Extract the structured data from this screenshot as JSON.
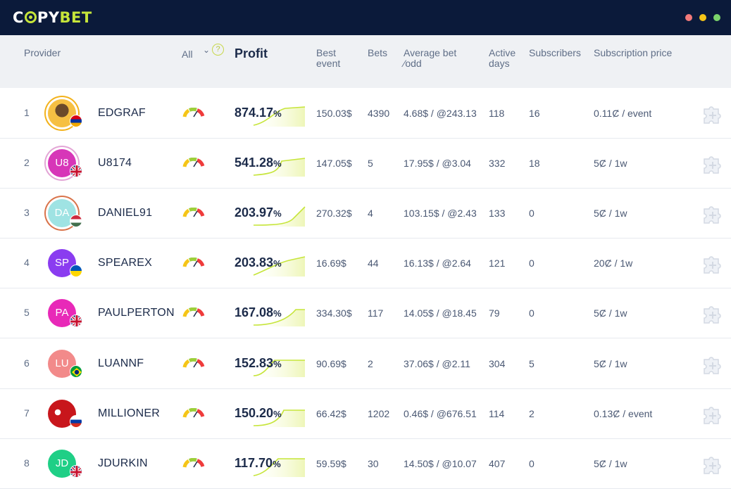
{
  "app": {
    "logo_prefix": "C",
    "logo_mid": "PY",
    "logo_accent": "BET",
    "window_dots": [
      "#f27a7a",
      "#f5c518",
      "#7bd36b"
    ]
  },
  "table": {
    "headers": {
      "provider": "Provider",
      "filter": "All",
      "help": "?",
      "profit": "Profit",
      "best_event": "Best event",
      "bets": "Bets",
      "average_bet": "Average bet  ⁄odd",
      "active_days": "Active days",
      "subscribers": "Subscribers",
      "subscription_price": "Subscription price"
    },
    "rows": [
      {
        "rank": "1",
        "initials": "",
        "avatar_color": "#f3b21b",
        "flag": "armenia",
        "name": "EDGRAF",
        "profit": "874.17",
        "pct": "%",
        "best_event": "150.03$",
        "bets": "4390",
        "avg_bet": "4.68$ / @243.13",
        "active_days": "118",
        "subscribers": "16",
        "price": "0.11Ȼ / event"
      },
      {
        "rank": "2",
        "initials": "U8",
        "avatar_color": "#d736b8",
        "flag": "uk",
        "name": "U8174",
        "profit": "541.28",
        "pct": "%",
        "best_event": "147.05$",
        "bets": "5",
        "avg_bet": "17.95$ / @3.04",
        "active_days": "332",
        "subscribers": "18",
        "price": "5Ȼ / 1w"
      },
      {
        "rank": "3",
        "initials": "DA",
        "avatar_color": "#9fe3e3",
        "flag": "hungary",
        "name": "DANIEL91",
        "profit": "203.97",
        "pct": "%",
        "best_event": "270.32$",
        "bets": "4",
        "avg_bet": "103.15$ / @2.43",
        "active_days": "133",
        "subscribers": "0",
        "price": "5Ȼ / 1w"
      },
      {
        "rank": "4",
        "initials": "SP",
        "avatar_color": "#8a3cf0",
        "flag": "ukraine",
        "name": "SPEAREX",
        "profit": "203.83",
        "pct": "%",
        "best_event": "16.69$",
        "bets": "44",
        "avg_bet": "16.13$ / @2.64",
        "active_days": "121",
        "subscribers": "0",
        "price": "20Ȼ / 1w"
      },
      {
        "rank": "5",
        "initials": "PA",
        "avatar_color": "#e829b8",
        "flag": "uk",
        "name": "PAULPERTON",
        "profit": "167.08",
        "pct": "%",
        "best_event": "334.30$",
        "bets": "117",
        "avg_bet": "14.05$ / @18.45",
        "active_days": "79",
        "subscribers": "0",
        "price": "5Ȼ / 1w"
      },
      {
        "rank": "6",
        "initials": "LU",
        "avatar_color": "#f28a8a",
        "flag": "brazil",
        "name": "LUANNF",
        "profit": "152.83",
        "pct": "%",
        "best_event": "90.69$",
        "bets": "2",
        "avg_bet": "37.06$ / @2.11",
        "active_days": "304",
        "subscribers": "5",
        "price": "5Ȼ / 1w"
      },
      {
        "rank": "7",
        "initials": "",
        "avatar_color": "#c8161c",
        "flag": "russia",
        "name": "MILLIONER",
        "profit": "150.20",
        "pct": "%",
        "best_event": "66.42$",
        "bets": "1202",
        "avg_bet": "0.46$ / @676.51",
        "active_days": "114",
        "subscribers": "2",
        "price": "0.13Ȼ / event"
      },
      {
        "rank": "8",
        "initials": "JD",
        "avatar_color": "#1fcf86",
        "flag": "uk",
        "name": "JDURKIN",
        "profit": "117.70",
        "pct": "%",
        "best_event": "59.59$",
        "bets": "30",
        "avg_bet": "14.50$ / @10.07",
        "active_days": "407",
        "subscribers": "0",
        "price": "5Ȼ / 1w"
      }
    ]
  }
}
